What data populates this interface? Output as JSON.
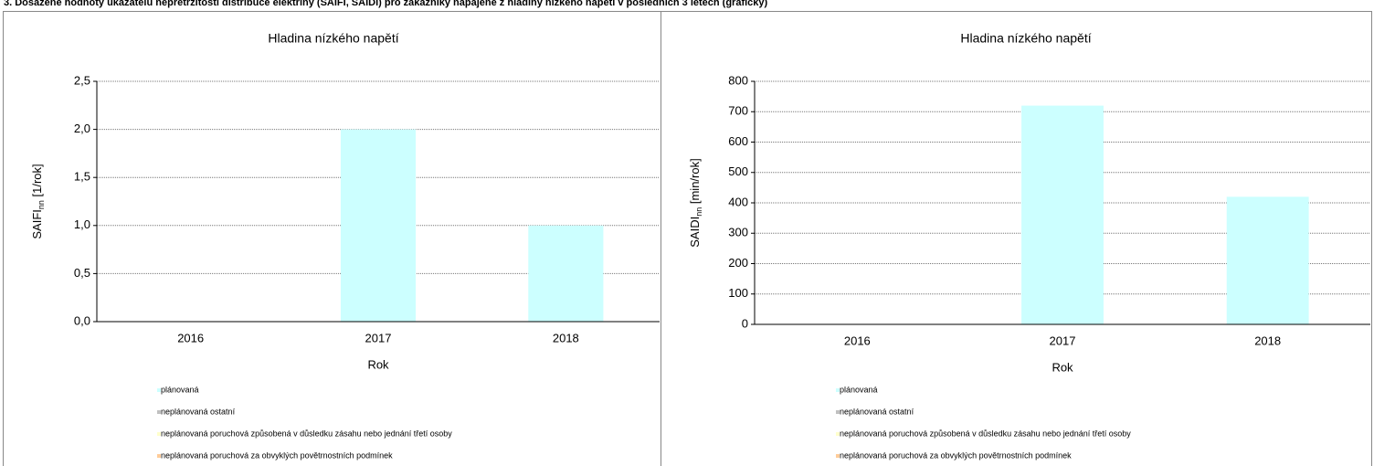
{
  "header": {
    "title": "3. Dosažené hodnoty ukazatelů nepřetržitosti distribuce elektřiny (SAIFI, SAIDI) pro zákazníky napájené z hladiny nízkého napětí v posledních 3 letech (graficky)"
  },
  "chart_data": [
    {
      "type": "stacked_bar",
      "title": "Hladina nízkého napětí",
      "y_label": {
        "main": "SAIFI",
        "sub": "nn",
        "unit": " [1/rok]"
      },
      "x_label": "Rok",
      "categories": [
        "2016",
        "2017",
        "2018"
      ],
      "series": [
        {
          "name": "plánovaná",
          "color": "#ccffff",
          "values": [
            0,
            2.0,
            1.0
          ]
        },
        {
          "name": "neplánovaná ostatní",
          "color": "#c0c0c0",
          "values": [
            0,
            0,
            0
          ]
        },
        {
          "name": "neplánovaná poruchová způsobená v důsledku zásahu nebo jednání třetí osoby",
          "color": "#ffffcc",
          "values": [
            0,
            0,
            0
          ]
        },
        {
          "name": "neplánovaná poruchová za obvyklých povětrnostních podmínek",
          "color": "#ffcc99",
          "values": [
            0,
            0,
            0
          ]
        }
      ],
      "ylim": [
        0,
        2.5
      ],
      "yticks": [
        {
          "value": 0,
          "label": "0,0"
        },
        {
          "value": 0.5,
          "label": "0,5"
        },
        {
          "value": 1,
          "label": "1,0"
        },
        {
          "value": 1.5,
          "label": "1,5"
        },
        {
          "value": 2,
          "label": "2,0"
        },
        {
          "value": 2.5,
          "label": "2,5"
        }
      ],
      "grid": true
    },
    {
      "type": "stacked_bar",
      "title": "Hladina nízkého napětí",
      "y_label": {
        "main": "SAIDI",
        "sub": "nn",
        "unit": " [min/rok]"
      },
      "x_label": "Rok",
      "categories": [
        "2016",
        "2017",
        "2018"
      ],
      "series": [
        {
          "name": "plánovaná",
          "color": "#ccffff",
          "values": [
            0,
            720,
            420
          ]
        },
        {
          "name": "neplánovaná ostatní",
          "color": "#c0c0c0",
          "values": [
            0,
            0,
            0
          ]
        },
        {
          "name": "neplánovaná poruchová způsobená v důsledku zásahu nebo jednání třetí osoby",
          "color": "#ffffcc",
          "values": [
            0,
            0,
            0
          ]
        },
        {
          "name": "neplánovaná poruchová za obvyklých povětrnostních podmínek",
          "color": "#ffcc99",
          "values": [
            0,
            0,
            0
          ]
        }
      ],
      "ylim": [
        0,
        800
      ],
      "yticks": [
        0,
        100,
        200,
        300,
        400,
        500,
        600,
        700,
        800
      ],
      "grid": true
    }
  ]
}
